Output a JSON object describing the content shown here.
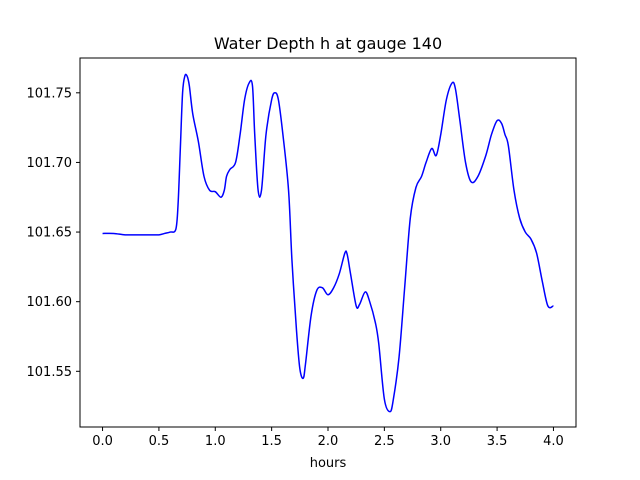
{
  "chart_data": {
    "type": "line",
    "title": "Water Depth h at gauge 140",
    "xlabel": "hours",
    "ylabel": "",
    "xlim": [
      -0.2,
      4.2
    ],
    "ylim": [
      101.51,
      101.775
    ],
    "xticks": [
      0.0,
      0.5,
      1.0,
      1.5,
      2.0,
      2.5,
      3.0,
      3.5,
      4.0
    ],
    "xtick_labels": [
      "0.0",
      "0.5",
      "1.0",
      "1.5",
      "2.0",
      "2.5",
      "3.0",
      "3.5",
      "4.0"
    ],
    "yticks": [
      101.55,
      101.6,
      101.65,
      101.7,
      101.75
    ],
    "ytick_labels": [
      "101.55",
      "101.60",
      "101.65",
      "101.70",
      "101.75"
    ],
    "grid": false,
    "color": "#0000ff",
    "series": [
      {
        "x": [
          0.0,
          0.1,
          0.2,
          0.3,
          0.4,
          0.5,
          0.55,
          0.6,
          0.65,
          0.67,
          0.69,
          0.71,
          0.73,
          0.75,
          0.77,
          0.8,
          0.85,
          0.9,
          0.95,
          1.0,
          1.05,
          1.08,
          1.1,
          1.13,
          1.18,
          1.22,
          1.26,
          1.3,
          1.33,
          1.35,
          1.38,
          1.41,
          1.45,
          1.5,
          1.53,
          1.56,
          1.6,
          1.65,
          1.68,
          1.72,
          1.75,
          1.78,
          1.8,
          1.85,
          1.9,
          1.95,
          2.0,
          2.05,
          2.1,
          2.15,
          2.17,
          2.2,
          2.25,
          2.28,
          2.33,
          2.37,
          2.42,
          2.45,
          2.5,
          2.55,
          2.58,
          2.63,
          2.68,
          2.73,
          2.78,
          2.83,
          2.87,
          2.92,
          2.96,
          3.0,
          3.05,
          3.1,
          3.13,
          3.17,
          3.22,
          3.27,
          3.33,
          3.4,
          3.45,
          3.5,
          3.54,
          3.57,
          3.6,
          3.65,
          3.7,
          3.75,
          3.8,
          3.85,
          3.9,
          3.95,
          4.0
        ],
        "y": [
          101.649,
          101.649,
          101.648,
          101.648,
          101.648,
          101.648,
          101.649,
          101.65,
          101.652,
          101.67,
          101.71,
          101.75,
          101.762,
          101.762,
          101.755,
          101.735,
          101.715,
          101.69,
          101.68,
          101.679,
          101.675,
          101.68,
          101.69,
          101.695,
          101.7,
          101.72,
          101.745,
          101.757,
          101.755,
          101.72,
          101.68,
          101.68,
          101.72,
          101.745,
          101.75,
          101.745,
          101.72,
          101.68,
          101.63,
          101.58,
          101.552,
          101.545,
          101.555,
          101.59,
          101.608,
          101.61,
          101.605,
          101.61,
          101.62,
          101.635,
          101.634,
          101.62,
          101.597,
          101.598,
          101.607,
          101.6,
          101.585,
          101.57,
          101.53,
          101.521,
          101.53,
          101.56,
          101.61,
          101.66,
          101.682,
          101.69,
          101.7,
          101.71,
          101.705,
          101.72,
          101.745,
          101.757,
          101.753,
          101.73,
          101.7,
          101.686,
          101.69,
          101.705,
          101.72,
          101.73,
          101.728,
          101.72,
          101.712,
          101.68,
          101.66,
          101.65,
          101.645,
          101.635,
          101.615,
          101.597,
          101.597
        ]
      }
    ]
  }
}
